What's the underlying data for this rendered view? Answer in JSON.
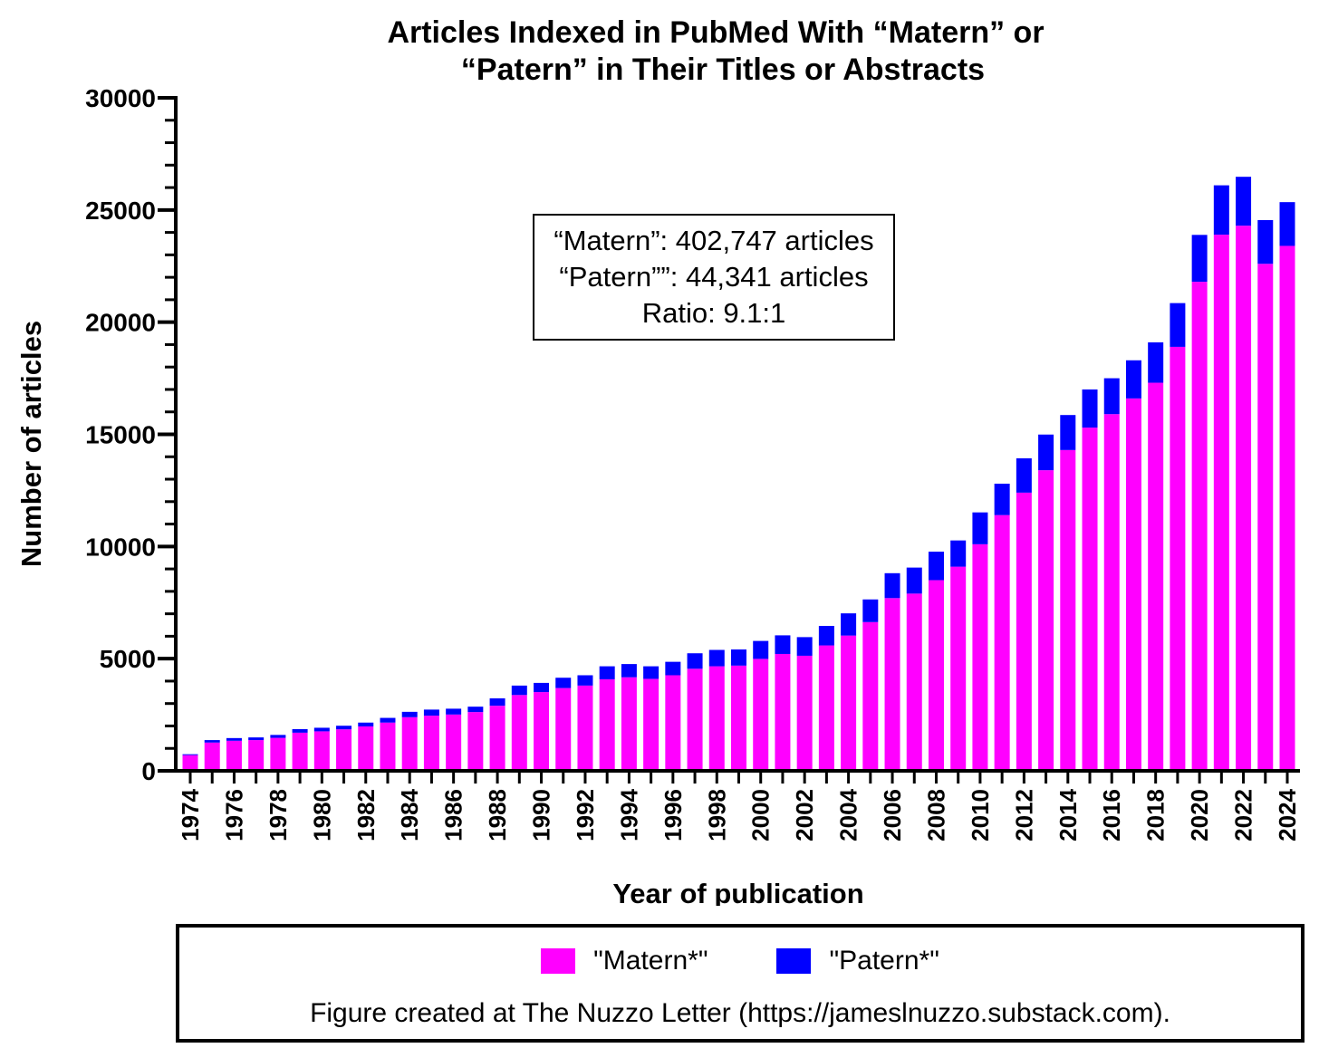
{
  "chart_data": {
    "type": "bar",
    "stacked": true,
    "title_lines": [
      "Articles Indexed in PubMed With “Matern” or",
      "“Patern” in Their Titles or Abstracts"
    ],
    "xlabel": "Year of publication",
    "ylabel": "Number of articles",
    "ylim": [
      0,
      30000
    ],
    "yticks": [
      "0",
      "5000",
      "10000",
      "15000",
      "20000",
      "25000",
      "30000"
    ],
    "categories": [
      1974,
      1975,
      1976,
      1977,
      1978,
      1979,
      1980,
      1981,
      1982,
      1983,
      1984,
      1985,
      1986,
      1987,
      1988,
      1989,
      1990,
      1991,
      1992,
      1993,
      1994,
      1995,
      1996,
      1997,
      1998,
      1999,
      2000,
      2001,
      2002,
      2003,
      2004,
      2005,
      2006,
      2007,
      2008,
      2009,
      2010,
      2011,
      2012,
      2013,
      2014,
      2015,
      2016,
      2017,
      2018,
      2019,
      2020,
      2021,
      2022,
      2023,
      2024
    ],
    "xtick_labels": [
      "1974",
      "1976",
      "1978",
      "1980",
      "1982",
      "1984",
      "1986",
      "1988",
      "1990",
      "1992",
      "1994",
      "1996",
      "1998",
      "2000",
      "2002",
      "2004",
      "2006",
      "2008",
      "2010",
      "2012",
      "2014",
      "2016",
      "2018",
      "2020",
      "2022",
      "2024"
    ],
    "series": [
      {
        "name": "\"Matern*\"",
        "color": "#FF00FF",
        "values": [
          700,
          1260,
          1340,
          1370,
          1470,
          1700,
          1760,
          1850,
          1980,
          2150,
          2390,
          2460,
          2510,
          2620,
          2900,
          3380,
          3510,
          3690,
          3800,
          4080,
          4170,
          4100,
          4260,
          4550,
          4660,
          4690,
          4990,
          5210,
          5130,
          5590,
          6030,
          6630,
          7700,
          7900,
          8500,
          9100,
          10100,
          11400,
          12400,
          13400,
          14300,
          15300,
          15900,
          16600,
          17300,
          18900,
          21800,
          23900,
          24300,
          22600,
          23400
        ]
      },
      {
        "name": "\"Patern*\"",
        "color": "#0000FF",
        "values": [
          40,
          110,
          120,
          120,
          130,
          160,
          160,
          160,
          170,
          210,
          240,
          270,
          260,
          240,
          330,
          420,
          410,
          460,
          460,
          580,
          590,
          560,
          600,
          690,
          730,
          720,
          800,
          830,
          830,
          870,
          990,
          1010,
          1110,
          1160,
          1270,
          1170,
          1420,
          1400,
          1530,
          1590,
          1560,
          1700,
          1600,
          1700,
          1800,
          1950,
          2090,
          2200,
          2180,
          1950,
          1950
        ]
      }
    ],
    "annotation": [
      "“Matern”: 402,747 articles",
      "“Patern””: 44,341 articles",
      "Ratio: 9.1:1"
    ],
    "legend_placement": "bottom",
    "grid": false
  },
  "legend": {
    "matern_label": "\"Matern*\"",
    "patern_label": "\"Patern*\"",
    "matern_color": "#FF00FF",
    "patern_color": "#0000FF"
  },
  "footer": {
    "credit": "Figure created at The Nuzzo Letter (https://jameslnuzzo.substack.com)."
  }
}
